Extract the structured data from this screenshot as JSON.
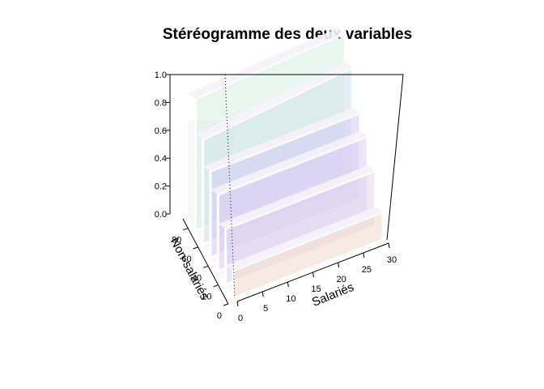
{
  "chart_data": {
    "type": "bar",
    "title": "Stéréogramme des deux variables",
    "xlabel": "Salariés",
    "ylabel": "Non-salariés",
    "zlabel": "",
    "x_ticks": [
      "0",
      "5",
      "10",
      "15",
      "20",
      "25",
      "30"
    ],
    "y_ticks": [
      "0",
      "20",
      "40",
      "60",
      "80"
    ],
    "z_ticks": [
      "0.0",
      "0.2",
      "0.4",
      "0.6",
      "0.8",
      "1.0"
    ],
    "xlim": [
      0,
      30
    ],
    "ylim": [
      0,
      90
    ],
    "zlim": [
      0,
      1.0
    ],
    "slabs": [
      {
        "y0": 0,
        "y1": 15,
        "cum_heights": [
          0.2,
          0.2
        ]
      },
      {
        "y0": 15,
        "y1": 30,
        "cum_heights": [
          0.4,
          0.4
        ]
      },
      {
        "y0": 30,
        "y1": 45,
        "cum_heights": [
          0.55,
          0.55
        ]
      },
      {
        "y0": 45,
        "y1": 60,
        "cum_heights": [
          0.62,
          0.62
        ]
      },
      {
        "y0": 60,
        "y1": 75,
        "cum_heights": [
          0.75,
          0.85
        ]
      },
      {
        "y0": 75,
        "y1": 90,
        "cum_heights": [
          0.95,
          1.0
        ]
      }
    ],
    "colors": [
      "#f0d8cc",
      "#e2d6f0",
      "#dcd0f2",
      "#d4cdf4",
      "#d0e2ec",
      "#d6f0e4"
    ],
    "grid": false,
    "legend": "none"
  }
}
